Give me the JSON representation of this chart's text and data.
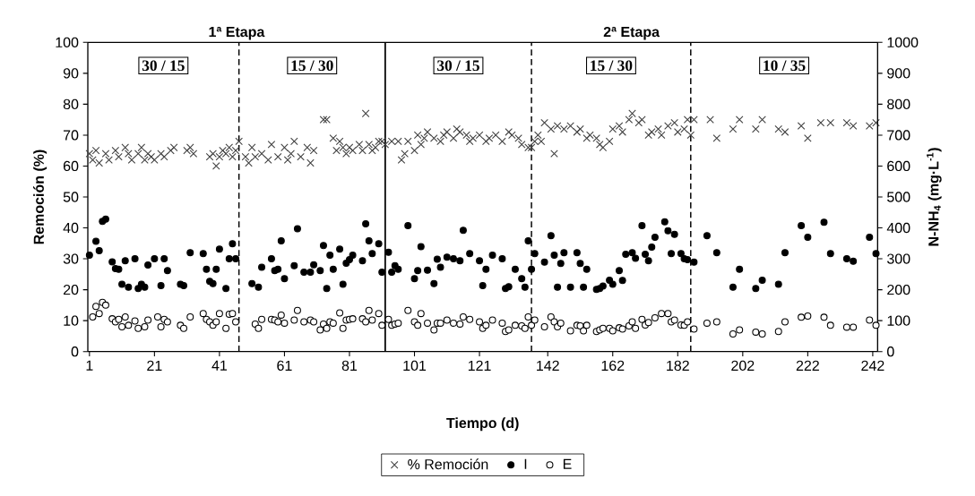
{
  "chart_data": {
    "type": "scatter",
    "xlabel": "Tiempo (d)",
    "ylabel": "Remoción (%)",
    "y2label": "N-NH$_{4}$ (mg·L$^{-1}$)",
    "annotations": [
      "1ª Etapa",
      "2ª Etapa",
      "30 / 15",
      "15 / 30",
      "30 / 15",
      "15 / 30",
      "10 / 35"
    ],
    "xlim": [
      0.5,
      243.5
    ],
    "xticks": [
      1,
      21,
      41,
      61,
      81,
      101,
      121,
      142,
      162,
      182,
      202,
      222,
      242
    ],
    "ylim": [
      0,
      100
    ],
    "yticks": [
      0,
      10,
      20,
      30,
      40,
      50,
      60,
      70,
      80,
      90,
      100
    ],
    "y2lim": [
      0,
      1000
    ],
    "y2ticks": [
      0,
      100,
      200,
      300,
      400,
      500,
      600,
      700,
      800,
      900,
      1000
    ],
    "legend": "bottom",
    "ref_lines": [
      {
        "axis": "x",
        "value": 47,
        "line_style": "dashed",
        "color": "#000000"
      },
      {
        "axis": "x",
        "value": 92,
        "line_style": "solid",
        "color": "#000000"
      },
      {
        "axis": "x",
        "value": 137,
        "line_style": "dashed",
        "color": "#000000"
      },
      {
        "axis": "x",
        "value": 186,
        "line_style": "dashed",
        "color": "#000000"
      }
    ],
    "series": [
      {
        "name": "% Remoción",
        "color": "#404040",
        "marker": "cross",
        "axis": "y",
        "x": [
          1,
          2,
          3,
          4,
          6,
          7,
          9,
          10,
          12,
          13,
          14,
          16,
          17,
          18,
          19,
          20,
          21,
          23,
          24,
          26,
          27,
          31,
          32,
          33,
          38,
          39,
          40,
          41,
          42,
          43,
          44,
          45,
          46,
          47,
          49,
          50,
          51,
          52,
          54,
          56,
          57,
          59,
          61,
          62,
          63,
          64,
          66,
          68,
          69,
          70,
          73,
          74,
          76,
          77,
          78,
          79,
          80,
          81,
          82,
          84,
          85,
          86,
          87,
          88,
          89,
          90,
          91,
          92,
          94,
          96,
          97,
          98,
          99,
          101,
          102,
          103,
          104,
          105,
          107,
          109,
          110,
          111,
          113,
          114,
          115,
          117,
          118,
          119,
          121,
          123,
          124,
          126,
          128,
          130,
          131,
          133,
          134,
          136,
          137,
          138,
          139,
          140,
          141,
          143,
          144,
          145,
          147,
          149,
          151,
          152,
          154,
          155,
          157,
          158,
          159,
          161,
          162,
          164,
          165,
          167,
          168,
          170,
          171,
          173,
          174,
          176,
          177,
          179,
          181,
          182,
          184,
          185,
          186,
          187,
          192,
          194,
          199,
          201,
          206,
          208,
          213,
          215,
          220,
          222,
          226,
          229,
          234,
          236,
          241,
          243
        ],
        "values": [
          64,
          62,
          65,
          61,
          64,
          62,
          65,
          63,
          66,
          64,
          62,
          64,
          66,
          62,
          64,
          63,
          62,
          64,
          63,
          65,
          66,
          65,
          66,
          64,
          63,
          64,
          60,
          63,
          65,
          64,
          66,
          63,
          65,
          68,
          63,
          61,
          66,
          63,
          64,
          62,
          67,
          63,
          66,
          62,
          64,
          68,
          63,
          66,
          61,
          65,
          75,
          75,
          69,
          65,
          68,
          66,
          64,
          66,
          65,
          67,
          65,
          77,
          67,
          65,
          66,
          68,
          68,
          67,
          68,
          68,
          62,
          64,
          68,
          65,
          70,
          67,
          69,
          71,
          69,
          68,
          70,
          71,
          69,
          72,
          71,
          70,
          68,
          69,
          70,
          68,
          69,
          70,
          68,
          71,
          70,
          69,
          67,
          66,
          66,
          68,
          70,
          68,
          74,
          72,
          64,
          73,
          72,
          73,
          71,
          72,
          69,
          70,
          69,
          67,
          66,
          68,
          72,
          73,
          71,
          75,
          77,
          74,
          75,
          70,
          71,
          72,
          70,
          73,
          74,
          71,
          72,
          75,
          70,
          75,
          75,
          69,
          72,
          75,
          72,
          75,
          72,
          71,
          73,
          69,
          74,
          74,
          74,
          73,
          73,
          74
        ]
      },
      {
        "name": "I",
        "color": "#000000",
        "marker": "circle",
        "axis": "y2",
        "x": [
          1,
          3,
          4,
          5,
          6,
          8,
          9,
          10,
          11,
          12,
          13,
          15,
          16,
          17,
          18,
          19,
          21,
          23,
          24,
          25,
          29,
          30,
          32,
          36,
          37,
          38,
          39,
          40,
          41,
          43,
          44,
          45,
          46,
          51,
          53,
          54,
          57,
          58,
          59,
          60,
          61,
          64,
          65,
          67,
          69,
          70,
          72,
          73,
          74,
          75,
          76,
          78,
          79,
          80,
          81,
          82,
          85,
          86,
          87,
          88,
          90,
          91,
          93,
          94,
          95,
          96,
          99,
          101,
          102,
          103,
          105,
          107,
          108,
          109,
          111,
          113,
          115,
          116,
          118,
          121,
          122,
          123,
          125,
          128,
          129,
          130,
          132,
          134,
          135,
          136,
          137,
          138,
          141,
          143,
          144,
          145,
          146,
          147,
          149,
          151,
          152,
          153,
          154,
          157,
          158,
          159,
          161,
          162,
          164,
          165,
          166,
          168,
          169,
          171,
          172,
          173,
          174,
          175,
          178,
          179,
          180,
          181,
          183,
          184,
          185,
          187,
          191,
          194,
          199,
          201,
          206,
          208,
          213,
          215,
          220,
          222,
          227,
          229,
          234,
          236,
          241,
          243
        ],
        "values": [
          312,
          357,
          326,
          421,
          428,
          290,
          268,
          266,
          218,
          294,
          208,
          300,
          204,
          218,
          208,
          280,
          300,
          213,
          300,
          262,
          218,
          213,
          320,
          317,
          266,
          227,
          220,
          266,
          331,
          204,
          300,
          349,
          300,
          220,
          208,
          273,
          300,
          262,
          266,
          358,
          236,
          278,
          397,
          257,
          257,
          281,
          262,
          343,
          204,
          312,
          266,
          331,
          218,
          286,
          297,
          312,
          294,
          413,
          358,
          317,
          349,
          257,
          321,
          257,
          278,
          266,
          407,
          236,
          262,
          339,
          263,
          220,
          299,
          273,
          305,
          300,
          294,
          392,
          317,
          294,
          213,
          266,
          312,
          300,
          204,
          210,
          266,
          236,
          208,
          358,
          266,
          317,
          289,
          375,
          312,
          208,
          285,
          320,
          208,
          320,
          285,
          208,
          266,
          201,
          204,
          212,
          231,
          218,
          262,
          230,
          315,
          320,
          302,
          407,
          315,
          294,
          338,
          370,
          420,
          391,
          317,
          379,
          317,
          300,
          297,
          289,
          375,
          320,
          208,
          266,
          204,
          231,
          218,
          320,
          407,
          370,
          418,
          317,
          300,
          292,
          370,
          317
        ]
      },
      {
        "name": "E",
        "color": "#ffffff",
        "marker": "circle",
        "axis": "y2",
        "x": [
          2,
          3,
          4,
          5,
          6,
          8,
          9,
          10,
          11,
          12,
          13,
          15,
          16,
          18,
          19,
          22,
          23,
          24,
          25,
          29,
          30,
          32,
          36,
          37,
          38,
          39,
          40,
          41,
          43,
          44,
          45,
          46,
          52,
          53,
          54,
          57,
          58,
          59,
          60,
          61,
          64,
          65,
          67,
          69,
          70,
          72,
          73,
          74,
          75,
          76,
          78,
          79,
          80,
          81,
          82,
          85,
          86,
          87,
          88,
          90,
          91,
          93,
          94,
          95,
          96,
          99,
          101,
          102,
          103,
          105,
          107,
          108,
          109,
          111,
          113,
          115,
          116,
          118,
          121,
          122,
          123,
          125,
          128,
          129,
          130,
          132,
          134,
          135,
          136,
          137,
          138,
          141,
          143,
          144,
          145,
          146,
          149,
          151,
          152,
          153,
          154,
          157,
          158,
          159,
          161,
          162,
          164,
          165,
          167,
          168,
          169,
          171,
          172,
          173,
          175,
          177,
          179,
          180,
          181,
          183,
          184,
          185,
          187,
          191,
          194,
          199,
          201,
          206,
          208,
          213,
          215,
          220,
          222,
          227,
          229,
          234,
          236,
          241,
          243
        ],
        "values": [
          112,
          146,
          123,
          159,
          150,
          106,
          96,
          104,
          80,
          112,
          85,
          99,
          75,
          80,
          102,
          112,
          80,
          104,
          96,
          85,
          75,
          112,
          123,
          104,
          96,
          85,
          96,
          123,
          75,
          121,
          123,
          96,
          89,
          75,
          104,
          104,
          102,
          96,
          118,
          92,
          102,
          133,
          96,
          102,
          96,
          70,
          89,
          75,
          96,
          92,
          125,
          75,
          102,
          104,
          106,
          106,
          96,
          133,
          102,
          123,
          85,
          104,
          85,
          89,
          92,
          133,
          96,
          85,
          123,
          92,
          70,
          92,
          92,
          102,
          92,
          89,
          112,
          104,
          96,
          75,
          85,
          102,
          92,
          65,
          70,
          85,
          83,
          75,
          112,
          85,
          102,
          80,
          112,
          96,
          80,
          92,
          67,
          85,
          83,
          67,
          85,
          65,
          70,
          75,
          75,
          67,
          77,
          73,
          83,
          96,
          75,
          104,
          86,
          94,
          109,
          123,
          123,
          96,
          102,
          86,
          85,
          96,
          73,
          92,
          96,
          57,
          70,
          63,
          57,
          65,
          96,
          111,
          115,
          111,
          85,
          79,
          79,
          102,
          85
        ]
      }
    ]
  }
}
